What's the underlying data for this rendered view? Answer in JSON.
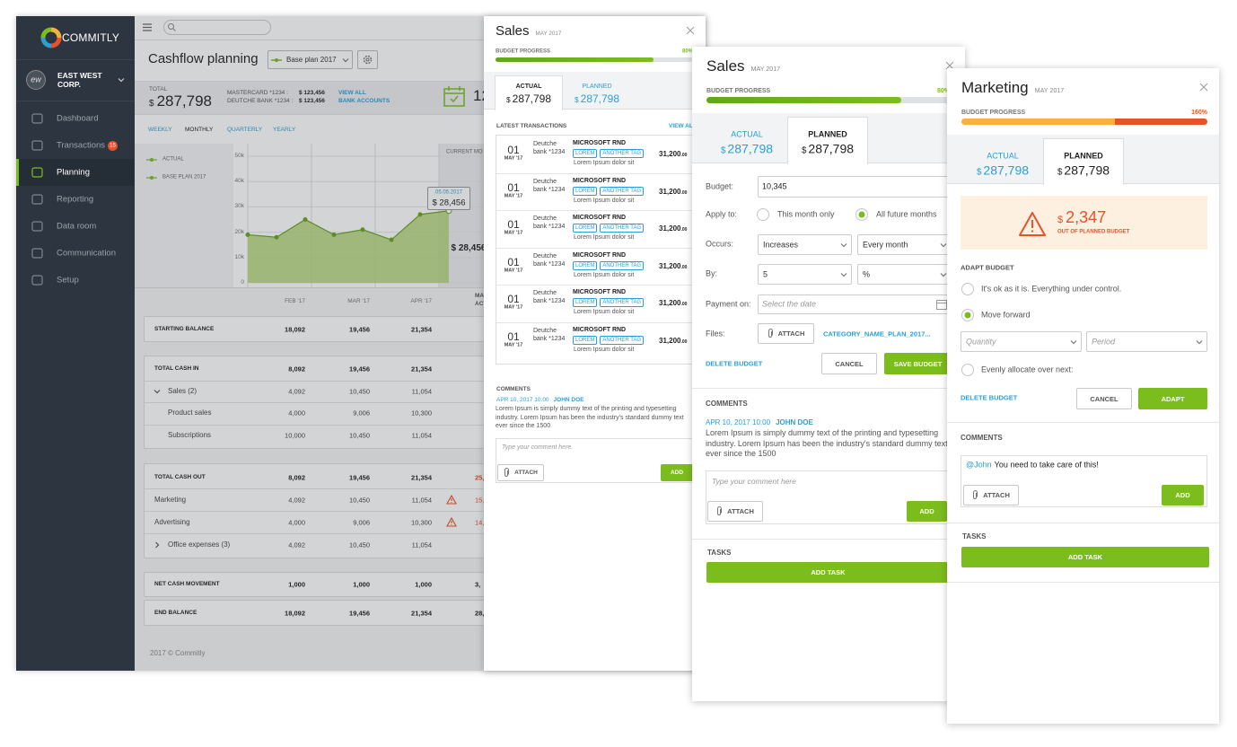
{
  "app": {
    "logo": "COMMITLY",
    "avatar": "ew",
    "company": "EAST WEST CORP.",
    "nav": [
      {
        "label": "Dashboard"
      },
      {
        "label": "Transactions",
        "badge": "15"
      },
      {
        "label": "Planning"
      },
      {
        "label": "Reporting"
      },
      {
        "label": "Data room"
      },
      {
        "label": "Communication"
      },
      {
        "label": "Setup"
      }
    ],
    "active_nav": 2,
    "page_title": "Cashflow planning",
    "plan": "Base plan 2017",
    "total_label": "TOTAL",
    "total_currency": "$",
    "total_amount": "287,798",
    "accounts": [
      {
        "name": "MASTERCARD *1234 :",
        "value": "$ 123,456"
      },
      {
        "name": "DEUTCHE BANK *1234 :",
        "value": "$ 123,456"
      }
    ],
    "view_all": [
      "VIEW ALL",
      "BANK ACCOUNTS"
    ],
    "tasks_count": "12",
    "periods": [
      "WEEKLY",
      "MONTHLY",
      "QUARTERLY",
      "YEARLY"
    ],
    "active_period": 1,
    "legend": [
      "ACTUAL",
      "BASE PLAN 2017"
    ],
    "chart": {
      "color": "#6aa520",
      "ylim": [
        0,
        50000
      ],
      "yticks": [
        0,
        {
          "value": 10000,
          "label": "10k"
        },
        {
          "value": 20000,
          "label": "20k"
        },
        {
          "value": 30000,
          "label": "30k"
        },
        {
          "value": 40000,
          "label": "40k"
        },
        {
          "value": 50000,
          "label": "50k"
        }
      ],
      "values": [
        19000,
        18000,
        25000,
        19000,
        21000,
        17000,
        27000,
        28456
      ],
      "current_month": "CURRENT MO",
      "tooltip_date": "05.05.2017",
      "tooltip_value": "$ 28,456",
      "point_label": "$ 28,456"
    },
    "columns": [
      "FEB '17",
      "MAR '17",
      "APR '17"
    ],
    "partial_column": [
      "MA",
      "ACT"
    ],
    "groups": [
      [
        {
          "label": "STARTING BALANCE",
          "kind": "total",
          "values": [
            "18,092",
            "19,456",
            "21,354"
          ]
        }
      ],
      [
        {
          "label": "TOTAL CASH IN",
          "kind": "total",
          "values": [
            "8,092",
            "19,456",
            "21,354"
          ]
        },
        {
          "label": "Sales (2)",
          "kind": "group",
          "expanded": true,
          "values": [
            "4,092",
            "10,450",
            "11,054"
          ]
        },
        {
          "label": "Product sales",
          "kind": "sub",
          "values": [
            "4,000",
            "9,006",
            "10,300"
          ]
        },
        {
          "label": "Subscriptions",
          "kind": "sub",
          "values": [
            "10,000",
            "10,450",
            "11,054"
          ]
        }
      ],
      [
        {
          "label": "TOTAL CASH OUT",
          "kind": "total",
          "values": [
            "8,092",
            "19,456",
            "21,354"
          ],
          "extra": "25,",
          "alert": true
        },
        {
          "label": "Marketing",
          "kind": "item",
          "values": [
            "4,092",
            "10,450",
            "11,054"
          ],
          "extra": "15,",
          "alert": true,
          "warning": true
        },
        {
          "label": "Advertising",
          "kind": "item",
          "values": [
            "4,000",
            "9,006",
            "10,300"
          ],
          "extra": "14,",
          "alert": true,
          "warning": true
        },
        {
          "label": "Office expenses (3)",
          "kind": "group",
          "expanded": false,
          "values": [
            "4,092",
            "10,450",
            "11,054"
          ]
        }
      ],
      [
        {
          "label": "NET CASH MOVEMENT",
          "kind": "total",
          "values": [
            "1,000",
            "1,000",
            "1,000"
          ],
          "extra": "3,"
        }
      ],
      [
        {
          "label": "END BALANCE",
          "kind": "total",
          "values": [
            "18,092",
            "19,456",
            "21,354"
          ],
          "extra": "28,4"
        }
      ]
    ],
    "footer": "2017 © Commitly"
  },
  "sales_panel": {
    "title": "Sales",
    "month": "MAY 2017",
    "progress_label": "BUDGET PROGRESS",
    "progress": 80,
    "progress_text": "80%",
    "tabs": [
      {
        "label": "ACTUAL",
        "currency": "$",
        "amount": "287,798"
      },
      {
        "label": "PLANNED",
        "currency": "$",
        "amount": "287,798"
      }
    ],
    "active_tab": 0,
    "transactions_heading": "LATEST TRANSACTIONS",
    "view_all": "VIEW ALL",
    "transactions": [
      {
        "day": "01",
        "month": "MAY '17",
        "bank": "Deutche bank *1234",
        "name": "MICROSOFT RND",
        "tags": [
          "LOREM",
          "ANOTHER TAG"
        ],
        "desc": "Lorem Ipsum dolor sit",
        "amount": "31,200",
        "cents": ".00"
      },
      {
        "day": "01",
        "month": "MAY '17",
        "bank": "Deutche bank *1234",
        "name": "MICROSOFT RND",
        "tags": [
          "LOREM",
          "ANOTHER TAG"
        ],
        "desc": "Lorem Ipsum dolor sit",
        "amount": "31,200",
        "cents": ".00"
      },
      {
        "day": "01",
        "month": "MAY '17",
        "bank": "Deutche bank *1234",
        "name": "MICROSOFT RND",
        "tags": [
          "LOREM",
          "ANOTHER TAG"
        ],
        "desc": "Lorem Ipsum dolor sit",
        "amount": "31,200",
        "cents": ".00"
      },
      {
        "day": "01",
        "month": "MAY '17",
        "bank": "Deutche bank *1234",
        "name": "MICROSOFT RND",
        "tags": [
          "LOREM",
          "ANOTHER TAG"
        ],
        "desc": "Lorem Ipsum dolor sit",
        "amount": "31,200",
        "cents": ".00"
      },
      {
        "day": "01",
        "month": "MAY '17",
        "bank": "Deutche bank *1234",
        "name": "MICROSOFT RND",
        "tags": [
          "LOREM",
          "ANOTHER TAG"
        ],
        "desc": "Lorem Ipsum dolor sit",
        "amount": "31,200",
        "cents": ".00"
      },
      {
        "day": "01",
        "month": "MAY '17",
        "bank": "Deutche bank *1234",
        "name": "MICROSOFT RND",
        "tags": [
          "LOREM",
          "ANOTHER TAG"
        ],
        "desc": "Lorem Ipsum dolor sit",
        "amount": "31,200",
        "cents": ".00"
      }
    ],
    "comments": {
      "heading": "COMMENTS",
      "date": "APR 10, 2017 10:00",
      "author": "JOHN DOE",
      "text": "Lorem Ipsum is simply dummy text of the printing and typesetting industry. Lorem Ipsum has been the industry's standard dummy text ever since the 1500",
      "placeholder": "Type your comment here.",
      "attach": "ATTACH",
      "add": "ADD"
    }
  },
  "sales_budget_panel": {
    "title": "Sales",
    "month": "MAY 2017",
    "progress_label": "BUDGET PROGRESS",
    "progress": 80,
    "progress_text": "80%",
    "tabs": [
      {
        "label": "ACTUAL",
        "currency": "$",
        "amount": "287,798"
      },
      {
        "label": "PLANNED",
        "currency": "$",
        "amount": "287,798"
      }
    ],
    "active_tab": 1,
    "form": {
      "budget": {
        "label": "Budget:",
        "value": "10,345"
      },
      "apply": {
        "label": "Apply to:",
        "options": [
          {
            "label": "This month only",
            "checked": false
          },
          {
            "label": "All future months",
            "checked": true
          }
        ]
      },
      "occurs": {
        "label": "Occurs:",
        "selects": [
          "Increases",
          "Every month"
        ]
      },
      "by": {
        "label": "By:",
        "selects": [
          "5",
          "%"
        ]
      },
      "payment": {
        "label": "Payment on:",
        "placeholder": "Select the date"
      },
      "files": {
        "label": "Files:",
        "attach": "ATTACH",
        "file": "CATEGORY_NAME_PLAN_2017..."
      }
    },
    "actions": {
      "delete": "DELETE BUDGET",
      "cancel": "CANCEL",
      "save": "SAVE BUDGET"
    },
    "comments": {
      "heading": "COMMENTS",
      "date": "APR 10, 2017 10:00",
      "author": "JOHN DOE",
      "text": "Lorem Ipsum is simply dummy text of the printing and typesetting industry. Lorem Ipsum has been the industry's standard dummy text ever since the 1500",
      "placeholder": "Type your comment here",
      "attach": "ATTACH",
      "add": "ADD"
    },
    "tasks": {
      "heading": "TASKS",
      "add": "ADD TASK"
    }
  },
  "marketing_panel": {
    "title": "Marketing",
    "month": "MAY 2017",
    "progress_label": "BUDGET PROGRESS",
    "progress": 160,
    "progress_text": "160%",
    "tabs": [
      {
        "label": "ACTUAL",
        "currency": "$",
        "amount": "287,798"
      },
      {
        "label": "PLANNED",
        "currency": "$",
        "amount": "287,798"
      }
    ],
    "active_tab": 1,
    "warning": {
      "currency": "$",
      "amount": "2,347",
      "text": "OUT OF PLANNED BUDGET"
    },
    "adapt": {
      "heading": "ADAPT BUDGET",
      "options": [
        {
          "label": "It's ok as it is. Everything under control.",
          "checked": false
        },
        {
          "label": "Move forward",
          "checked": true
        },
        {
          "label": "Evenly allocate over next:",
          "checked": false
        }
      ],
      "selects": [
        "Quantity",
        "Period"
      ]
    },
    "actions": {
      "delete": "DELETE BUDGET",
      "cancel": "CANCEL",
      "adapt": "ADAPT"
    },
    "comments": {
      "heading": "COMMENTS",
      "mention": "@John",
      "text": "You need to take care of this!",
      "attach": "ATTACH",
      "add": "ADD"
    },
    "tasks": {
      "heading": "TASKS",
      "add": "ADD TASK"
    }
  }
}
